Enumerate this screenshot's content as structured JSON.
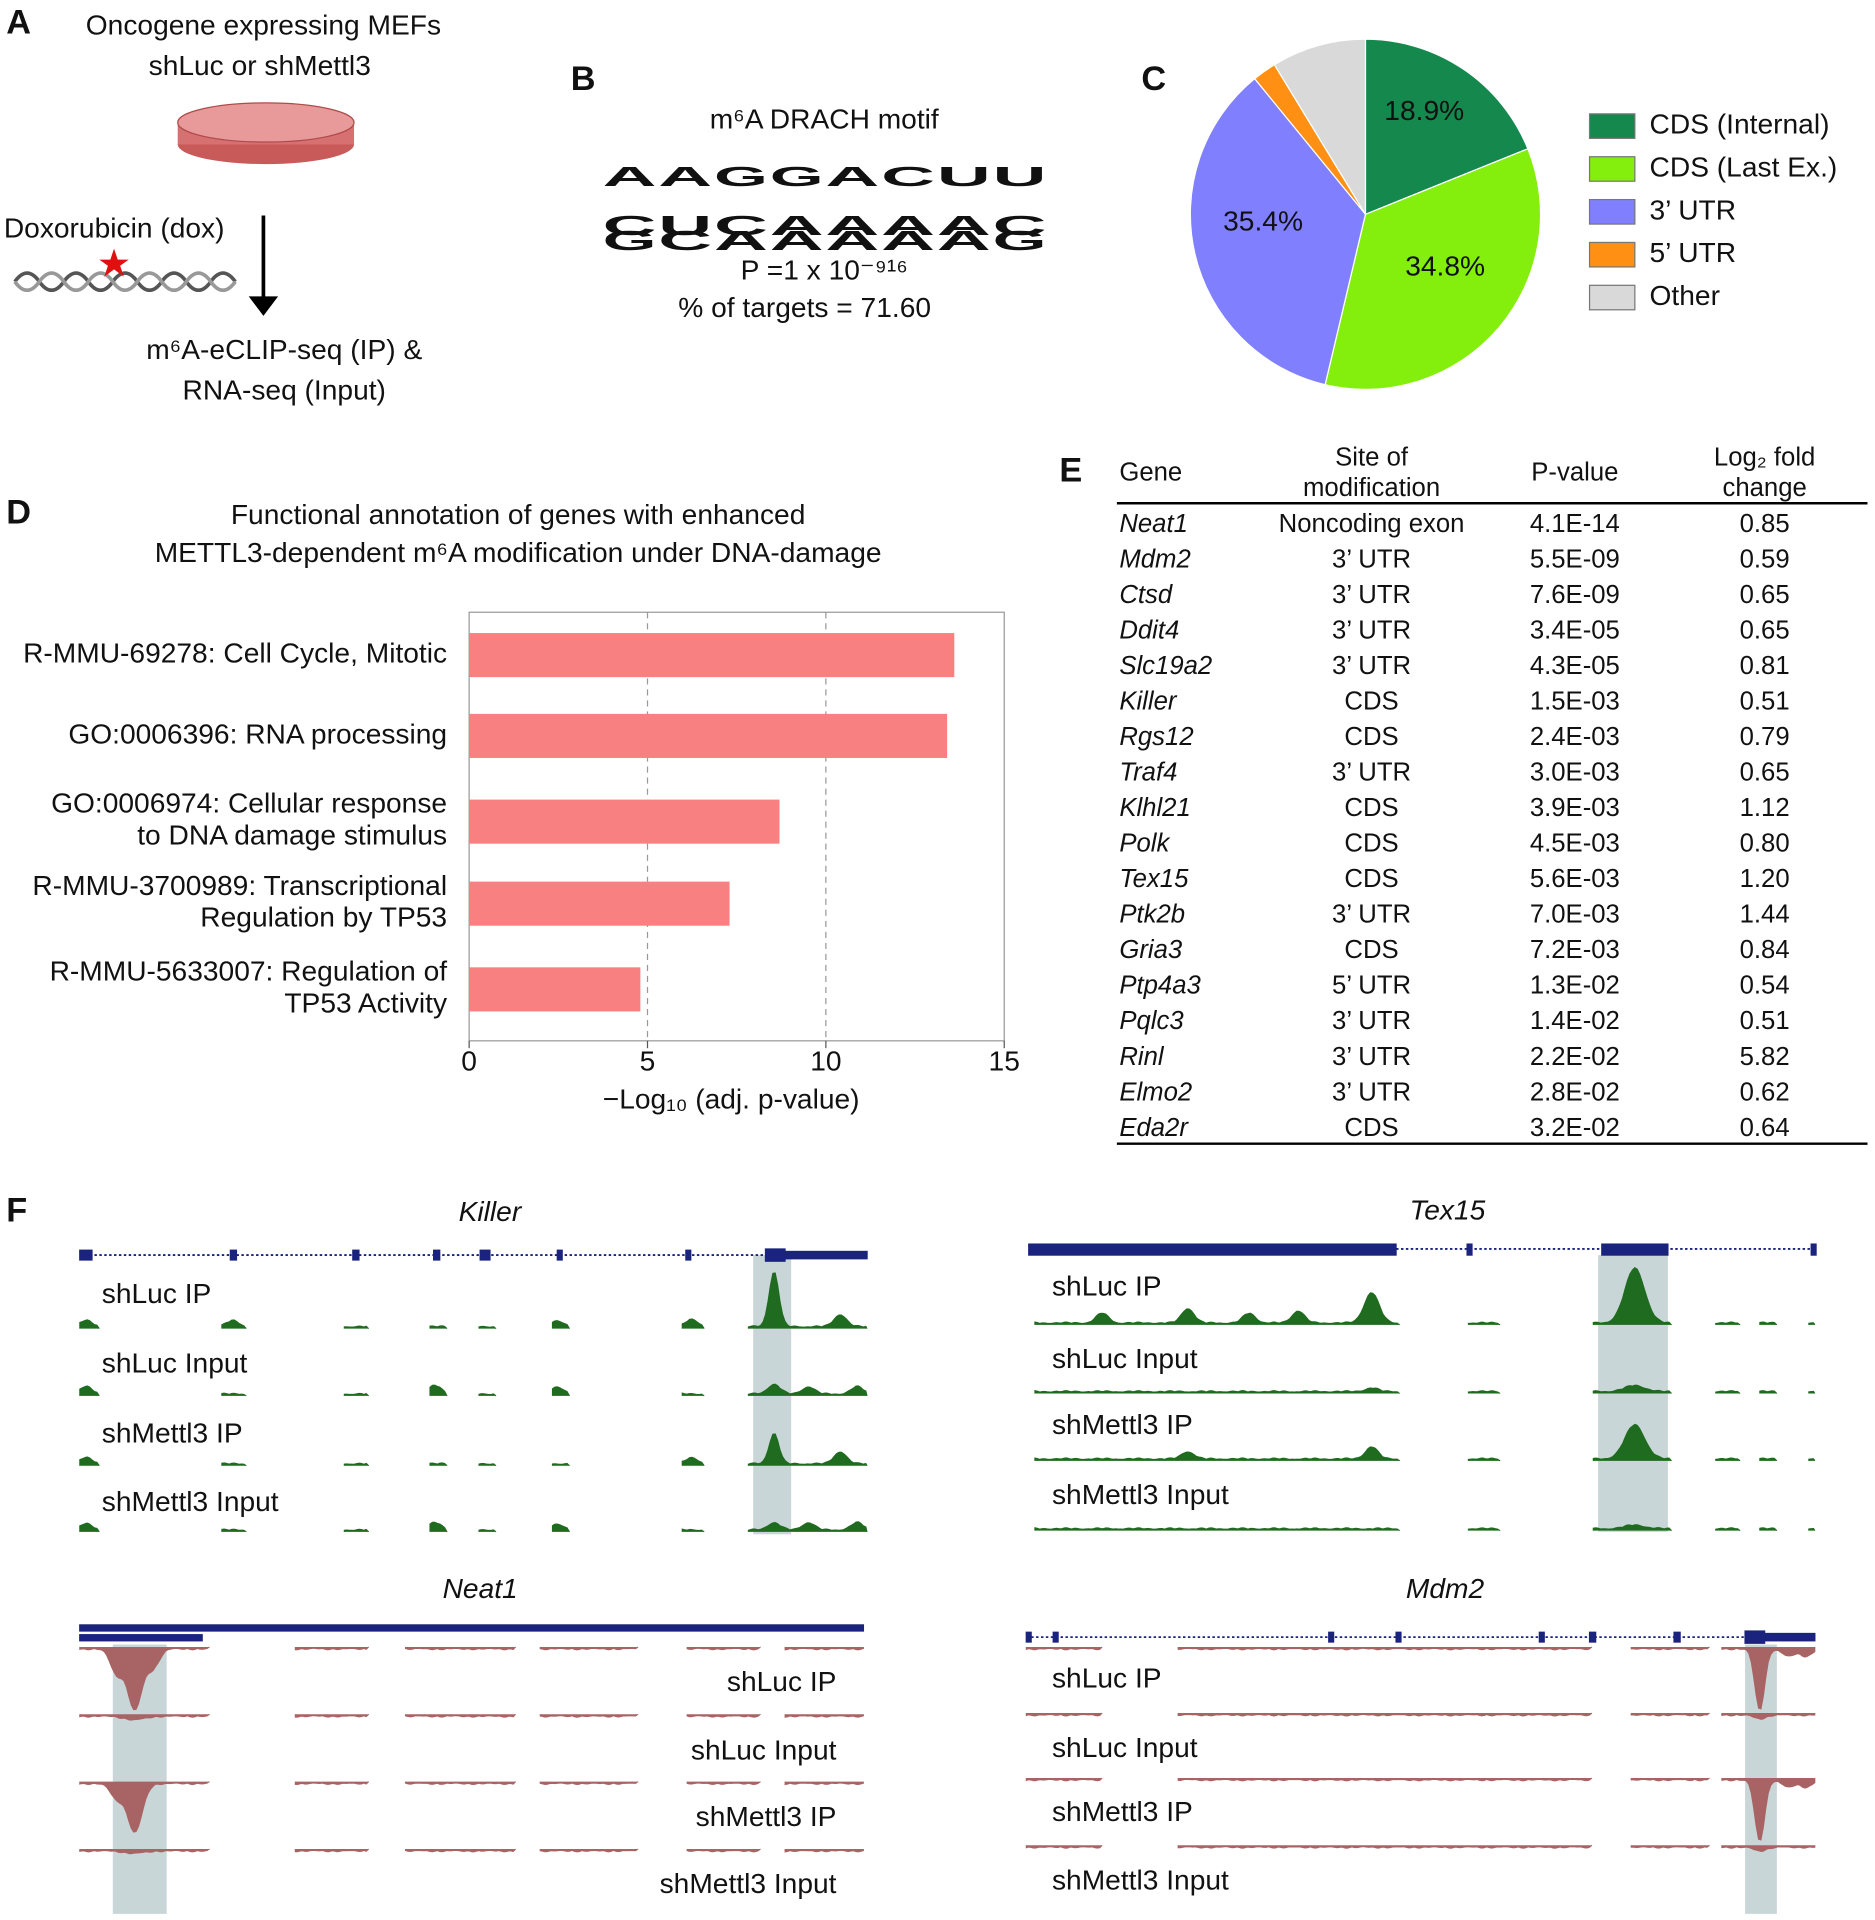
{
  "panel_labels": [
    "A",
    "B",
    "C",
    "D",
    "E",
    "F"
  ],
  "workflow": {
    "title_lines": [
      "Oncogene expressing MEFs",
      "shLuc or shMettl3"
    ],
    "treatment": "Doxorubicin (dox)",
    "output_lines": [
      "m⁶A-eCLIP-seq (IP) &",
      "RNA-seq (Input)"
    ]
  },
  "motif": {
    "title": "m⁶A DRACH motif",
    "letters": [
      "A",
      "A",
      "G",
      "G",
      "A",
      "C",
      "U",
      "U"
    ],
    "minor_letters": [
      [
        "C",
        "U",
        "C",
        "A",
        "A",
        "A",
        "A",
        "C"
      ],
      [
        "G",
        "C",
        "A",
        "A",
        "A",
        "A",
        "A",
        "G"
      ]
    ],
    "p_value": "P =1 x 10⁻⁹¹⁶",
    "targets": "% of targets = 71.60"
  },
  "chart_data": [
    {
      "type": "pie",
      "categories": [
        "CDS (Internal)",
        "CDS (Last Ex.)",
        "3’ UTR",
        "5’ UTR",
        "Other"
      ],
      "values": [
        18.9,
        34.8,
        35.4,
        2.2,
        8.7
      ],
      "value_labels": [
        "18.9%",
        "34.8%",
        "35.4%",
        null,
        null
      ],
      "colors": [
        "#15884e",
        "#84ee0c",
        "#8080ff",
        "#ff9014",
        "#d9d9d9"
      ]
    },
    {
      "type": "barh",
      "title_lines": [
        "Functional annotation of genes with enhanced",
        "METTL3-dependent m⁶A modification under DNA-damage"
      ],
      "categories": [
        "R-MMU-69278: Cell Cycle, Mitotic",
        "GO:0006396: RNA processing",
        "GO:0006974: Cellular response\nto DNA damage stimulus",
        "R-MMU-3700989: Transcriptional\nRegulation by TP53",
        "R-MMU-5633007: Regulation of\nTP53 Activity"
      ],
      "values": [
        13.6,
        13.4,
        8.7,
        7.3,
        4.8
      ],
      "color": "#f88080",
      "xlim": [
        0,
        15
      ],
      "xticks": [
        0,
        5,
        10,
        15
      ],
      "xlabel": "−Log₁₀ (adj. p-value)",
      "grid": true
    }
  ],
  "table": {
    "header": [
      "Gene",
      "Site of\nmodification",
      "P-value",
      "Log₂ fold\nchange"
    ],
    "rows": [
      [
        "Neat1",
        "Noncoding exon",
        "4.1E-14",
        "0.85"
      ],
      [
        "Mdm2",
        "3’ UTR",
        "5.5E-09",
        "0.59"
      ],
      [
        "Ctsd",
        "3’ UTR",
        "7.6E-09",
        "0.65"
      ],
      [
        "Ddit4",
        "3’ UTR",
        "3.4E-05",
        "0.65"
      ],
      [
        "Slc19a2",
        "3’ UTR",
        "4.3E-05",
        "0.81"
      ],
      [
        "Killer",
        "CDS",
        "1.5E-03",
        "0.51"
      ],
      [
        "Rgs12",
        "CDS",
        "2.4E-03",
        "0.79"
      ],
      [
        "Traf4",
        "3’ UTR",
        "3.0E-03",
        "0.65"
      ],
      [
        "Klhl21",
        "CDS",
        "3.9E-03",
        "1.12"
      ],
      [
        "Polk",
        "CDS",
        "4.5E-03",
        "0.80"
      ],
      [
        "Tex15",
        "CDS",
        "5.6E-03",
        "1.20"
      ],
      [
        "Ptk2b",
        "3’ UTR",
        "7.0E-03",
        "1.44"
      ],
      [
        "Gria3",
        "CDS",
        "7.2E-03",
        "0.84"
      ],
      [
        "Ptp4a3",
        "5’ UTR",
        "1.3E-02",
        "0.54"
      ],
      [
        "Pqlc3",
        "3’ UTR",
        "1.4E-02",
        "0.51"
      ],
      [
        "Rinl",
        "3’ UTR",
        "2.2E-02",
        "5.82"
      ],
      [
        "Elmo2",
        "3’ UTR",
        "2.8E-02",
        "0.62"
      ],
      [
        "Eda2r",
        "CDS",
        "3.2E-02",
        "0.64"
      ]
    ]
  },
  "tracks": [
    {
      "gene": "Killer",
      "labels": [
        "shLuc IP",
        "shLuc Input",
        "shMettl3 IP",
        "shMettl3 Input"
      ]
    },
    {
      "gene": "Tex15",
      "labels": [
        "shLuc IP",
        "shLuc Input",
        "shMettl3 IP",
        "shMettl3 Input"
      ]
    },
    {
      "gene": "Neat1",
      "labels": [
        "shLuc IP",
        "shLuc Input",
        "shMettl3 IP",
        "shMettl3 Input"
      ]
    },
    {
      "gene": "Mdm2",
      "labels": [
        "shLuc IP",
        "shLuc Input",
        "shMettl3 IP",
        "shMettl3 Input"
      ]
    }
  ]
}
